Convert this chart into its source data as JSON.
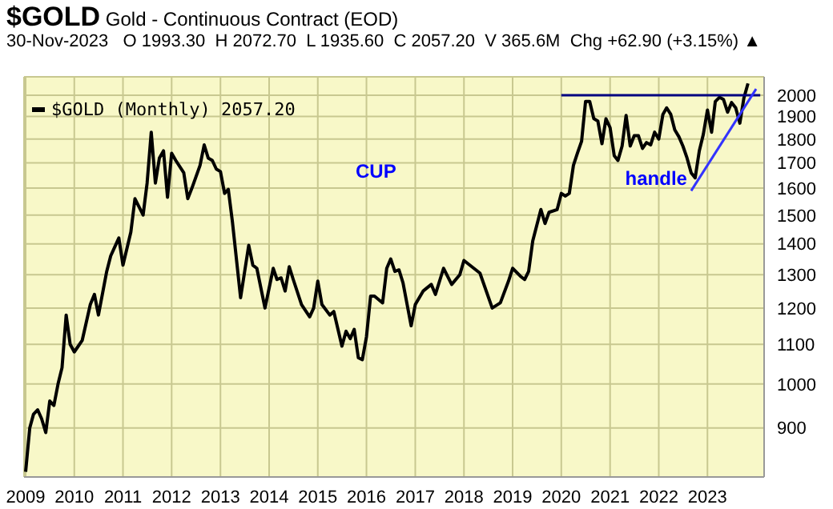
{
  "chart_data": {
    "type": "line",
    "title": "$GOLD Gold - Continuous Contract (EOD)",
    "subtitle": "30-Nov-2023   O 1993.30  H 2072.70  L 1935.60  C 2057.20  V 365.6M  Chg +62.90 (+3.15%) ▲",
    "annotations": [
      "CUP",
      {
        "text": "handle",
        "x": "2022-10",
        "y": 1640
      }
    ],
    "series": [
      {
        "name": "$GOLD (Monthly) 2057.20",
        "color": "#000000",
        "x": [
          "2009-01",
          "2009-02",
          "2009-03",
          "2009-04",
          "2009-05",
          "2009-06",
          "2009-07",
          "2009-08",
          "2009-09",
          "2009-10",
          "2009-11",
          "2009-12",
          "2010-01",
          "2010-03",
          "2010-05",
          "2010-06",
          "2010-07",
          "2010-09",
          "2010-10",
          "2010-11",
          "2010-12",
          "2011-01",
          "2011-03",
          "2011-04",
          "2011-05",
          "2011-06",
          "2011-07",
          "2011-08",
          "2011-09",
          "2011-10",
          "2011-11",
          "2011-12",
          "2012-01",
          "2012-02",
          "2012-04",
          "2012-05",
          "2012-06",
          "2012-08",
          "2012-09",
          "2012-10",
          "2012-11",
          "2012-12",
          "2013-01",
          "2013-02",
          "2013-03",
          "2013-04",
          "2013-06",
          "2013-08",
          "2013-09",
          "2013-10",
          "2013-12",
          "2014-02",
          "2014-03",
          "2014-04",
          "2014-05",
          "2014-06",
          "2014-07",
          "2014-09",
          "2014-11",
          "2014-12",
          "2015-01",
          "2015-02",
          "2015-04",
          "2015-05",
          "2015-07",
          "2015-08",
          "2015-09",
          "2015-10",
          "2015-11",
          "2015-12",
          "2016-01",
          "2016-02",
          "2016-03",
          "2016-05",
          "2016-06",
          "2016-07",
          "2016-08",
          "2016-09",
          "2016-10",
          "2016-12",
          "2017-01",
          "2017-03",
          "2017-05",
          "2017-06",
          "2017-08",
          "2017-10",
          "2017-12",
          "2018-01",
          "2018-03",
          "2018-05",
          "2018-08",
          "2018-10",
          "2018-12",
          "2019-01",
          "2019-03",
          "2019-04",
          "2019-05",
          "2019-06",
          "2019-08",
          "2019-09",
          "2019-10",
          "2019-12",
          "2020-01",
          "2020-02",
          "2020-03",
          "2020-04",
          "2020-05",
          "2020-06",
          "2020-07",
          "2020-08",
          "2020-09",
          "2020-10",
          "2020-11",
          "2020-12",
          "2021-01",
          "2021-02",
          "2021-03",
          "2021-04",
          "2021-05",
          "2021-06",
          "2021-07",
          "2021-08",
          "2021-09",
          "2021-10",
          "2021-11",
          "2021-12",
          "2022-01",
          "2022-02",
          "2022-03",
          "2022-04",
          "2022-05",
          "2022-06",
          "2022-07",
          "2022-08",
          "2022-09",
          "2022-10",
          "2022-11",
          "2022-12",
          "2023-01",
          "2023-02",
          "2023-03",
          "2023-04",
          "2023-05",
          "2023-06",
          "2023-07",
          "2023-08",
          "2023-09",
          "2023-10",
          "2023-11"
        ],
        "values": [
          810,
          900,
          930,
          940,
          920,
          890,
          960,
          950,
          1000,
          1040,
          1180,
          1100,
          1080,
          1110,
          1210,
          1240,
          1180,
          1310,
          1360,
          1390,
          1420,
          1330,
          1440,
          1560,
          1530,
          1500,
          1620,
          1830,
          1620,
          1720,
          1750,
          1565,
          1740,
          1710,
          1660,
          1560,
          1600,
          1690,
          1775,
          1720,
          1710,
          1675,
          1665,
          1580,
          1595,
          1475,
          1230,
          1395,
          1330,
          1320,
          1200,
          1320,
          1285,
          1290,
          1250,
          1325,
          1285,
          1210,
          1175,
          1200,
          1280,
          1210,
          1180,
          1190,
          1095,
          1135,
          1115,
          1140,
          1065,
          1060,
          1120,
          1235,
          1235,
          1215,
          1320,
          1350,
          1310,
          1315,
          1275,
          1150,
          1210,
          1250,
          1270,
          1240,
          1320,
          1270,
          1300,
          1345,
          1325,
          1305,
          1200,
          1215,
          1280,
          1320,
          1295,
          1285,
          1310,
          1410,
          1520,
          1470,
          1510,
          1520,
          1580,
          1570,
          1580,
          1690,
          1740,
          1790,
          1970,
          1970,
          1890,
          1880,
          1780,
          1890,
          1850,
          1730,
          1710,
          1770,
          1905,
          1770,
          1815,
          1815,
          1760,
          1785,
          1775,
          1830,
          1800,
          1910,
          1940,
          1910,
          1840,
          1810,
          1770,
          1720,
          1660,
          1640,
          1750,
          1820,
          1930,
          1830,
          1970,
          1990,
          1980,
          1920,
          1965,
          1940,
          1870,
          1985,
          2057
        ]
      },
      {
        "type": "line",
        "color": "#000080",
        "x": [
          "2020-01",
          "2024-02"
        ],
        "values": [
          2000,
          2000
        ]
      },
      {
        "type": "line",
        "color": "#3333ff",
        "x": [
          "2022-09",
          "2024-01"
        ],
        "values": [
          1590,
          2030
        ]
      }
    ],
    "xlim": [
      "2008-12-20",
      "2024-03"
    ],
    "xticks": [
      {
        "value": "2009",
        "label": "2009"
      },
      {
        "value": "2010",
        "label": "2010"
      },
      {
        "value": "2011",
        "label": "2011"
      },
      {
        "value": "2012",
        "label": "2012"
      },
      {
        "value": "2013",
        "label": "2013"
      },
      {
        "value": "2014",
        "label": "2014"
      },
      {
        "value": "2015",
        "label": "2015"
      },
      {
        "value": "2016",
        "label": "2016"
      },
      {
        "value": "2017",
        "label": "2017"
      },
      {
        "value": "2018",
        "label": "2018"
      },
      {
        "value": "2019",
        "label": "2019"
      },
      {
        "value": "2020",
        "label": "2020"
      },
      {
        "value": "2021",
        "label": "2021"
      },
      {
        "value": "2022",
        "label": "2022"
      },
      {
        "value": "2023",
        "label": "2023"
      }
    ],
    "ylim": [
      800,
      2090
    ],
    "yticks": [
      900,
      1000,
      1100,
      1200,
      1300,
      1400,
      1500,
      1600,
      1700,
      1800,
      1900,
      2000
    ],
    "log": "y",
    "grid": true,
    "legend": "top left",
    "marker": "none",
    "line_style": "solid"
  }
}
